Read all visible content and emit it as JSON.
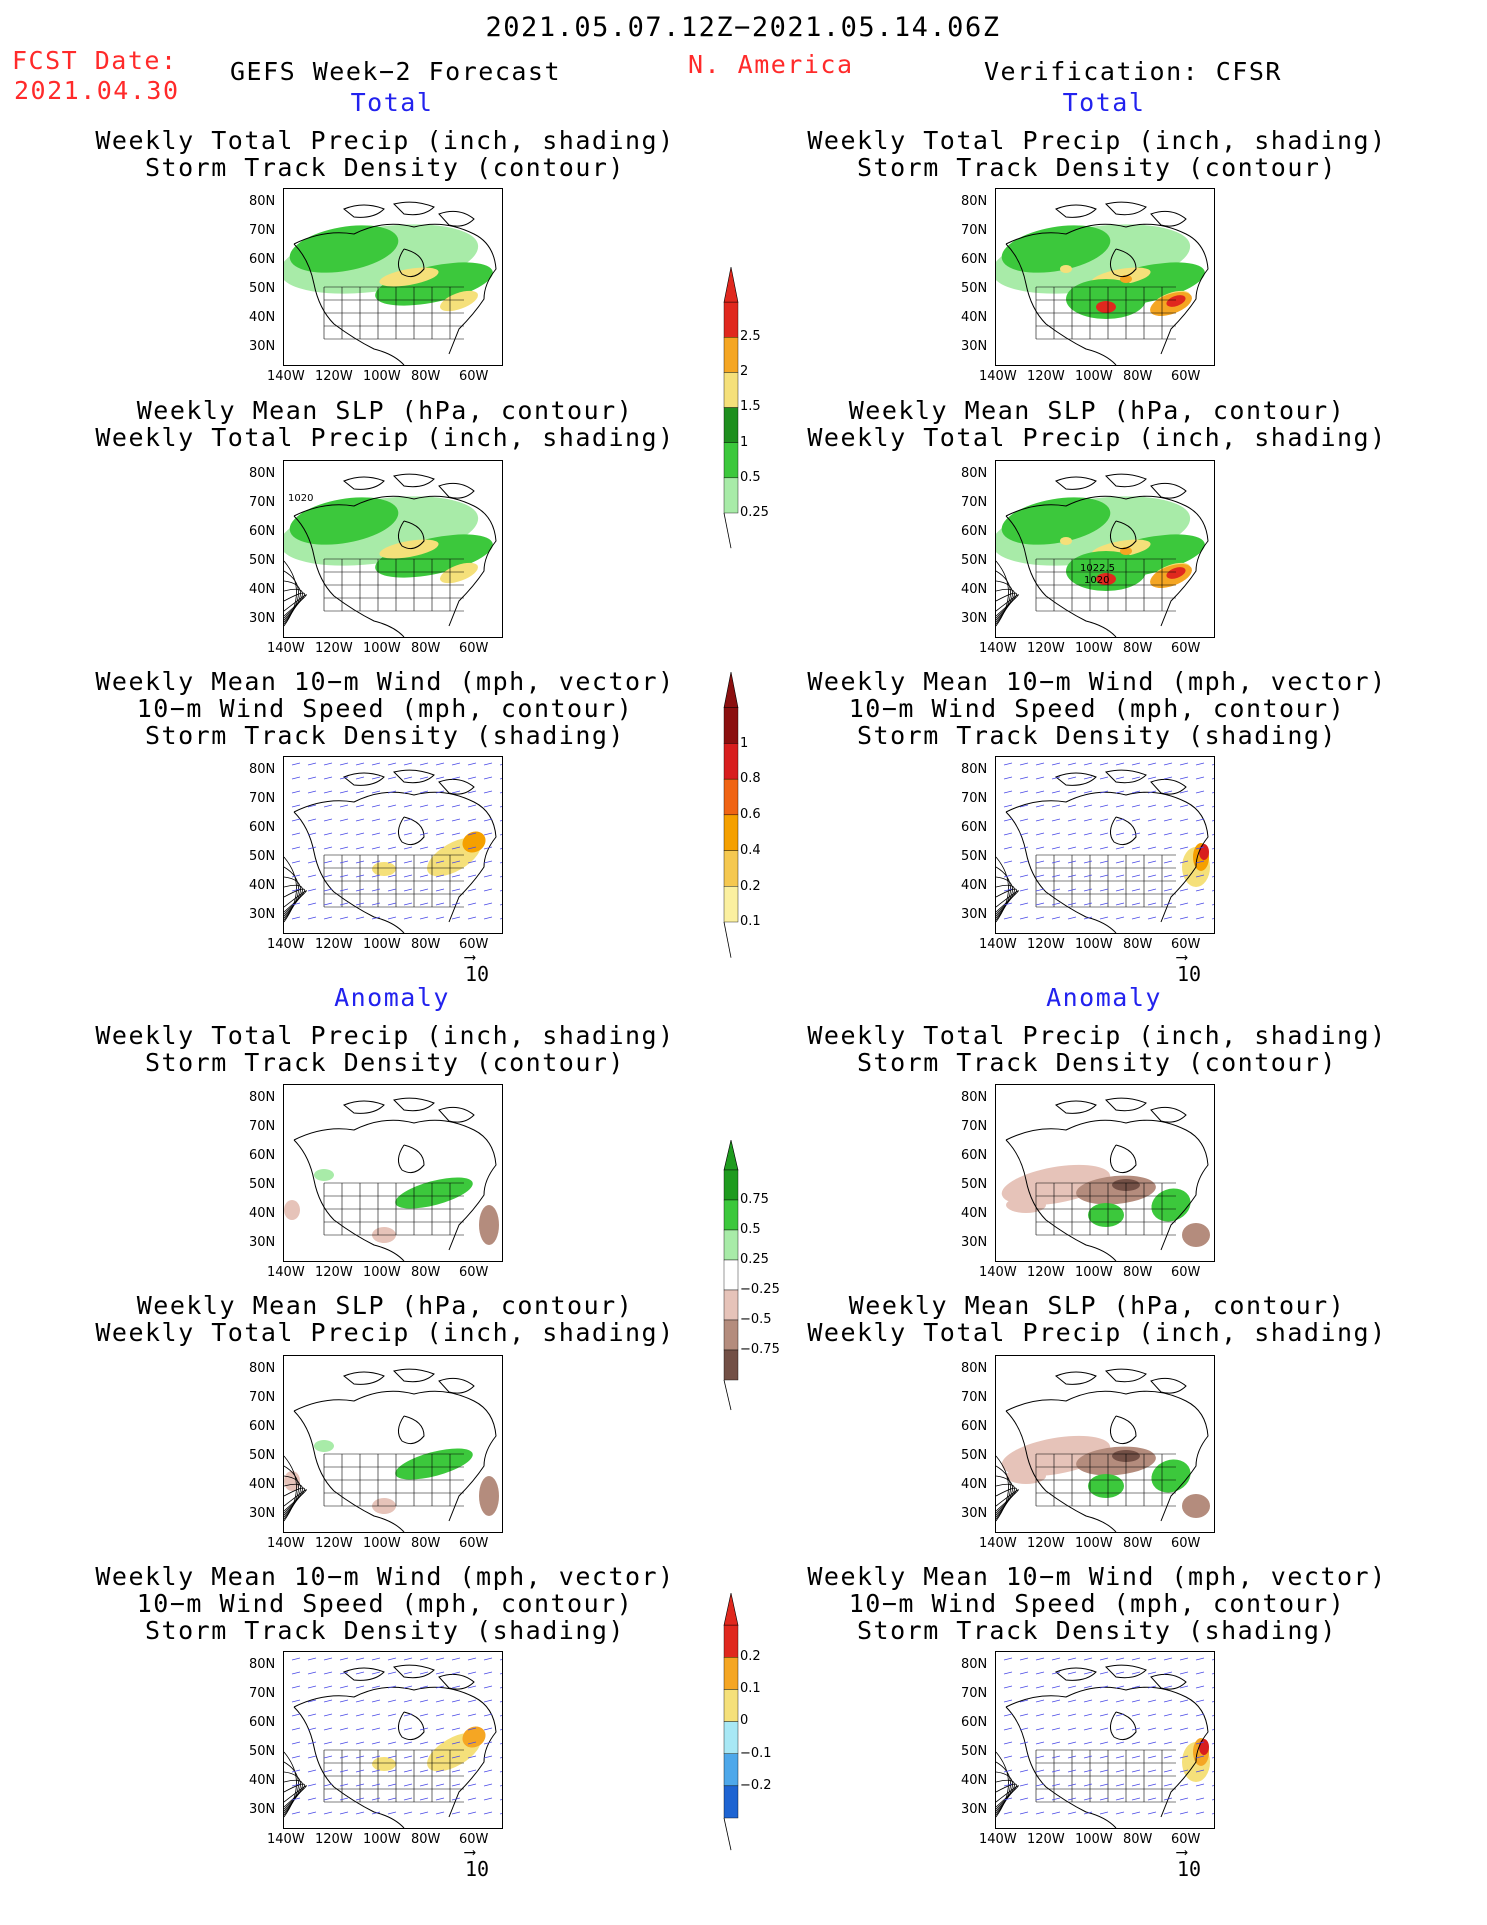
{
  "header": {
    "date_range": "2021.05.07.12Z−2021.05.14.06Z",
    "fcst_label": "FCST Date:",
    "fcst_date": "2021.04.30",
    "forecast_title": "GEFS Week−2 Forecast",
    "region": "N. America",
    "verification": "Verification: CFSR"
  },
  "sections": {
    "total": "Total",
    "anomaly": "Anomaly"
  },
  "panel_titles": {
    "precip_track": [
      "Weekly Total Precip (inch, shading)",
      "Storm Track Density (contour)"
    ],
    "slp_precip": [
      "Weekly Mean SLP (hPa, contour)",
      "Weekly Total Precip (inch, shading)"
    ],
    "wind_track": [
      "Weekly Mean 10−m Wind (mph, vector)",
      "10−m Wind Speed (mph, contour)",
      "Storm Track Density (shading)"
    ]
  },
  "axes": {
    "lat_labels": [
      "80N",
      "70N",
      "60N",
      "50N",
      "40N",
      "30N"
    ],
    "lon_labels": [
      "140W",
      "120W",
      "100W",
      "80W",
      "60W"
    ]
  },
  "contour_labels": {
    "left_slp": "1020",
    "right_slp_a": "1022.5",
    "right_slp_b": "1020"
  },
  "vector_ref": "10",
  "colorbars": {
    "precip_total": {
      "labels": [
        "2.5",
        "2",
        "1.5",
        "1",
        "0.5",
        "0.25"
      ],
      "colors": [
        "#e0281e",
        "#f5a623",
        "#f5e07a",
        "#1e8f1e",
        "#3cc83c",
        "#a8eba8"
      ]
    },
    "track_total": {
      "labels": [
        "1",
        "0.8",
        "0.6",
        "0.4",
        "0.2",
        "0.1"
      ],
      "colors": [
        "#8b0f0f",
        "#d81e1e",
        "#f06414",
        "#f5a000",
        "#f5c850",
        "#fbf0a0"
      ]
    },
    "precip_anom": {
      "labels": [
        "0.75",
        "0.5",
        "0.25",
        "−0.25",
        "−0.5",
        "−0.75"
      ],
      "colors": [
        "#1e9b1e",
        "#3cc83c",
        "#a8eba8",
        "#ffffff",
        "#e6c3b9",
        "#b48c7d",
        "#735046"
      ]
    },
    "track_anom": {
      "labels": [
        "0.2",
        "0.1",
        "0",
        "−0.1",
        "−0.2"
      ],
      "colors": [
        "#e0281e",
        "#f5a623",
        "#f5e07a",
        "#a8e8f5",
        "#4ea8ea",
        "#1e64d2"
      ]
    }
  }
}
